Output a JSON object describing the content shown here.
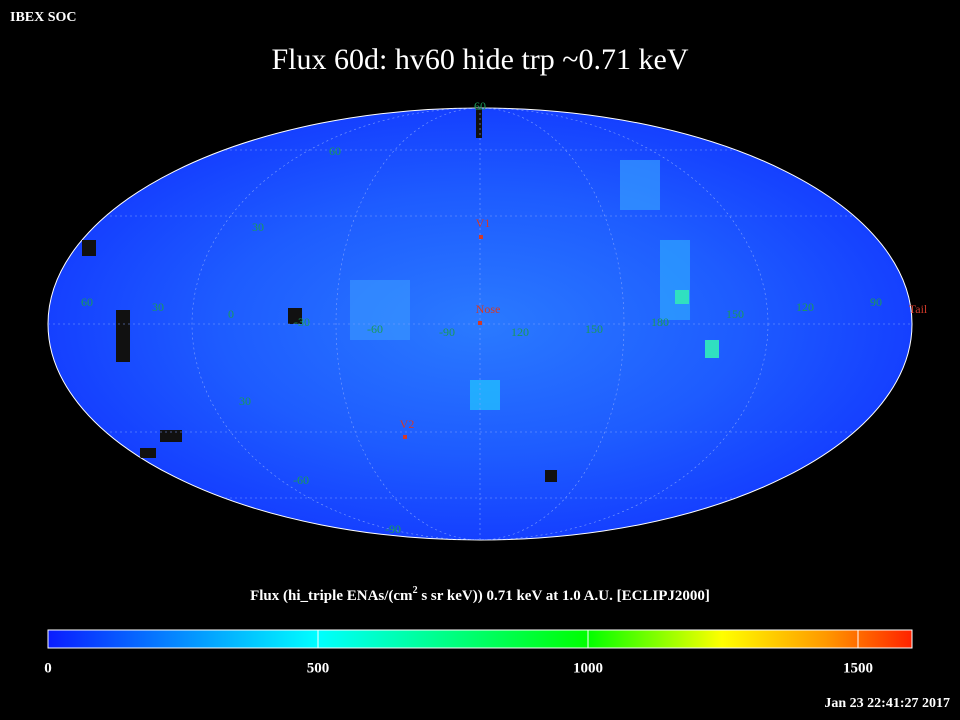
{
  "header": {
    "corner": "IBEX SOC",
    "title": "Flux   60d: hv60 hide trp ~0.71 keV"
  },
  "map": {
    "grid_labels": [
      "60",
      "60",
      "30",
      "60",
      "30",
      "0",
      "-30",
      "-60",
      "-90",
      "120",
      "150",
      "180",
      "150",
      "120",
      "90",
      "30",
      "-60",
      "-90"
    ],
    "markers": [
      "V1",
      "Nose",
      "Tail",
      "V2"
    ]
  },
  "colorbar": {
    "title": [
      "Flux (hi_triple ENAs/(cm",
      "2",
      " s sr keV))  0.71 keV at 1.0 A.U. [ECLIPJ2000]"
    ],
    "lim": [
      0,
      1600
    ],
    "ticks": [
      0,
      500,
      1000,
      1500
    ]
  },
  "timestamp": "Jan 23 22:41:27 2017"
}
